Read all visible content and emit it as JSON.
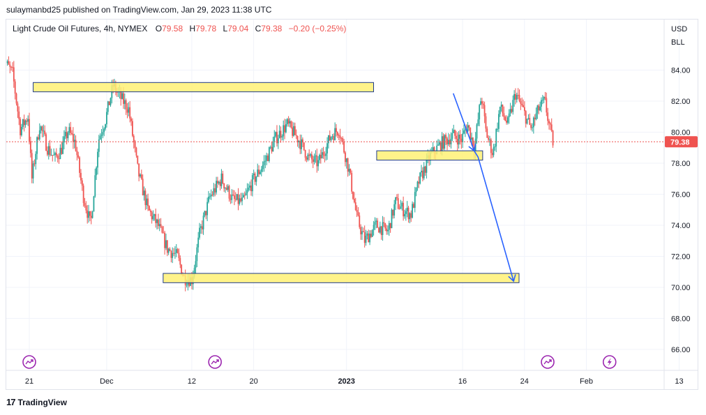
{
  "header": {
    "published": "sulaymanbd25 published on TradingView.com, Jan 29, 2023 11:38 UTC"
  },
  "legend": {
    "symbol": "Light Crude Oil Futures, 4h, NYMEX",
    "o_label": "O",
    "o_value": "79.58",
    "h_label": "H",
    "h_value": "79.78",
    "l_label": "L",
    "l_value": "79.04",
    "c_label": "C",
    "c_value": "79.38",
    "change": "−0.20 (−0.25%)"
  },
  "price_scale": {
    "currency": "USD",
    "unit": "BLL"
  },
  "footer": {
    "brand": "TradingView",
    "logo_glyph": "17"
  },
  "colors": {
    "up": "#26a69a",
    "down": "#ef5350",
    "zone_fill": "#fff176",
    "zone_border": "#1e3a8a",
    "arrow": "#2962ff",
    "event": "#9c27b0",
    "grid": "#f0f3fa",
    "price_line": "#ef5350"
  },
  "event_markers": [
    {
      "x_day": 0,
      "icon": "split-arrow-icon"
    },
    {
      "x_day": 24,
      "icon": "split-arrow-icon"
    },
    {
      "x_day": 67,
      "icon": "split-arrow-icon"
    },
    {
      "x_day": 75,
      "icon": "lightning-icon"
    }
  ],
  "chart_data": {
    "type": "candlestick",
    "title": "Light Crude Oil Futures, 4h, NYMEX",
    "last_price": 79.38,
    "ylim": [
      64.5,
      85.5
    ],
    "y_ticks": [
      "66.00",
      "68.00",
      "70.00",
      "72.00",
      "74.00",
      "76.00",
      "78.00",
      "80.00",
      "82.00",
      "84.00"
    ],
    "x_ticks": [
      {
        "label": "21",
        "day": 0
      },
      {
        "label": "Dec",
        "day": 10
      },
      {
        "label": "12",
        "day": 21
      },
      {
        "label": "20",
        "day": 29
      },
      {
        "label": "2023",
        "day": 41
      },
      {
        "label": "16",
        "day": 56
      },
      {
        "label": "24",
        "day": 64
      },
      {
        "label": "Feb",
        "day": 72
      },
      {
        "label": "13",
        "day": 84
      }
    ],
    "anchors": [
      [
        -3.5,
        84.9
      ],
      [
        -2,
        83.8
      ],
      [
        -1,
        80.2
      ],
      [
        0,
        81.0
      ],
      [
        0.5,
        77.0
      ],
      [
        1.5,
        80.5
      ],
      [
        2.5,
        79.0
      ],
      [
        3.5,
        78.3
      ],
      [
        4.3,
        78.9
      ],
      [
        5.2,
        80.1
      ],
      [
        6.1,
        79.3
      ],
      [
        7.1,
        76.0
      ],
      [
        8.1,
        74.0
      ],
      [
        9.1,
        79.5
      ],
      [
        10,
        80.8
      ],
      [
        11,
        83.0
      ],
      [
        12,
        82.2
      ],
      [
        13,
        81.5
      ],
      [
        14.2,
        77.5
      ],
      [
        15.5,
        75.0
      ],
      [
        16.8,
        74.0
      ],
      [
        18,
        72.5
      ],
      [
        19.3,
        72.0
      ],
      [
        20.2,
        70.6
      ],
      [
        21.2,
        70.5
      ],
      [
        22.2,
        73.5
      ],
      [
        23.5,
        75.8
      ],
      [
        25,
        77.0
      ],
      [
        26.5,
        75.6
      ],
      [
        27.8,
        75.5
      ],
      [
        29,
        76.8
      ],
      [
        30.5,
        78.0
      ],
      [
        32,
        79.6
      ],
      [
        33.5,
        80.5
      ],
      [
        35,
        79.5
      ],
      [
        36.3,
        78.3
      ],
      [
        37.5,
        78.0
      ],
      [
        39.2,
        79.8
      ],
      [
        40.2,
        80.2
      ],
      [
        41.5,
        77.5
      ],
      [
        42.5,
        74.5
      ],
      [
        43.5,
        73.0
      ],
      [
        45,
        74.0
      ],
      [
        46.5,
        73.6
      ],
      [
        47.5,
        75.5
      ],
      [
        48.5,
        75.0
      ],
      [
        49.5,
        74.7
      ],
      [
        50.5,
        76.8
      ],
      [
        52,
        78.5
      ],
      [
        53.5,
        79.3
      ],
      [
        55,
        79.8
      ],
      [
        56,
        79.5
      ],
      [
        56.8,
        80.5
      ],
      [
        57.7,
        79.0
      ],
      [
        58.6,
        82.4
      ],
      [
        59.2,
        80.0
      ],
      [
        60.1,
        78.6
      ],
      [
        61,
        81.6
      ],
      [
        62,
        80.5
      ],
      [
        63,
        82.5
      ],
      [
        64,
        81.4
      ],
      [
        65,
        80.2
      ],
      [
        66,
        81.5
      ],
      [
        66.8,
        82.0
      ],
      [
        67.3,
        80.6
      ],
      [
        67.8,
        79.4
      ]
    ],
    "zones": [
      {
        "name": "resistance-zone",
        "x0": 0.5,
        "x1": 44.5,
        "y0": 82.6,
        "y1": 83.2
      },
      {
        "name": "near-support-zone",
        "x0": 44.9,
        "x1": 58.6,
        "y0": 78.2,
        "y1": 78.8
      },
      {
        "name": "major-support-zone",
        "x0": 17.3,
        "x1": 63.3,
        "y0": 70.3,
        "y1": 70.9
      }
    ],
    "projection": [
      [
        54.8,
        82.5
      ],
      [
        57.5,
        78.8
      ],
      [
        58,
        78.4
      ],
      [
        62.6,
        70.4
      ]
    ],
    "projection_arrowheads": [
      [
        57.5,
        78.8
      ],
      [
        62.6,
        70.4
      ]
    ]
  }
}
